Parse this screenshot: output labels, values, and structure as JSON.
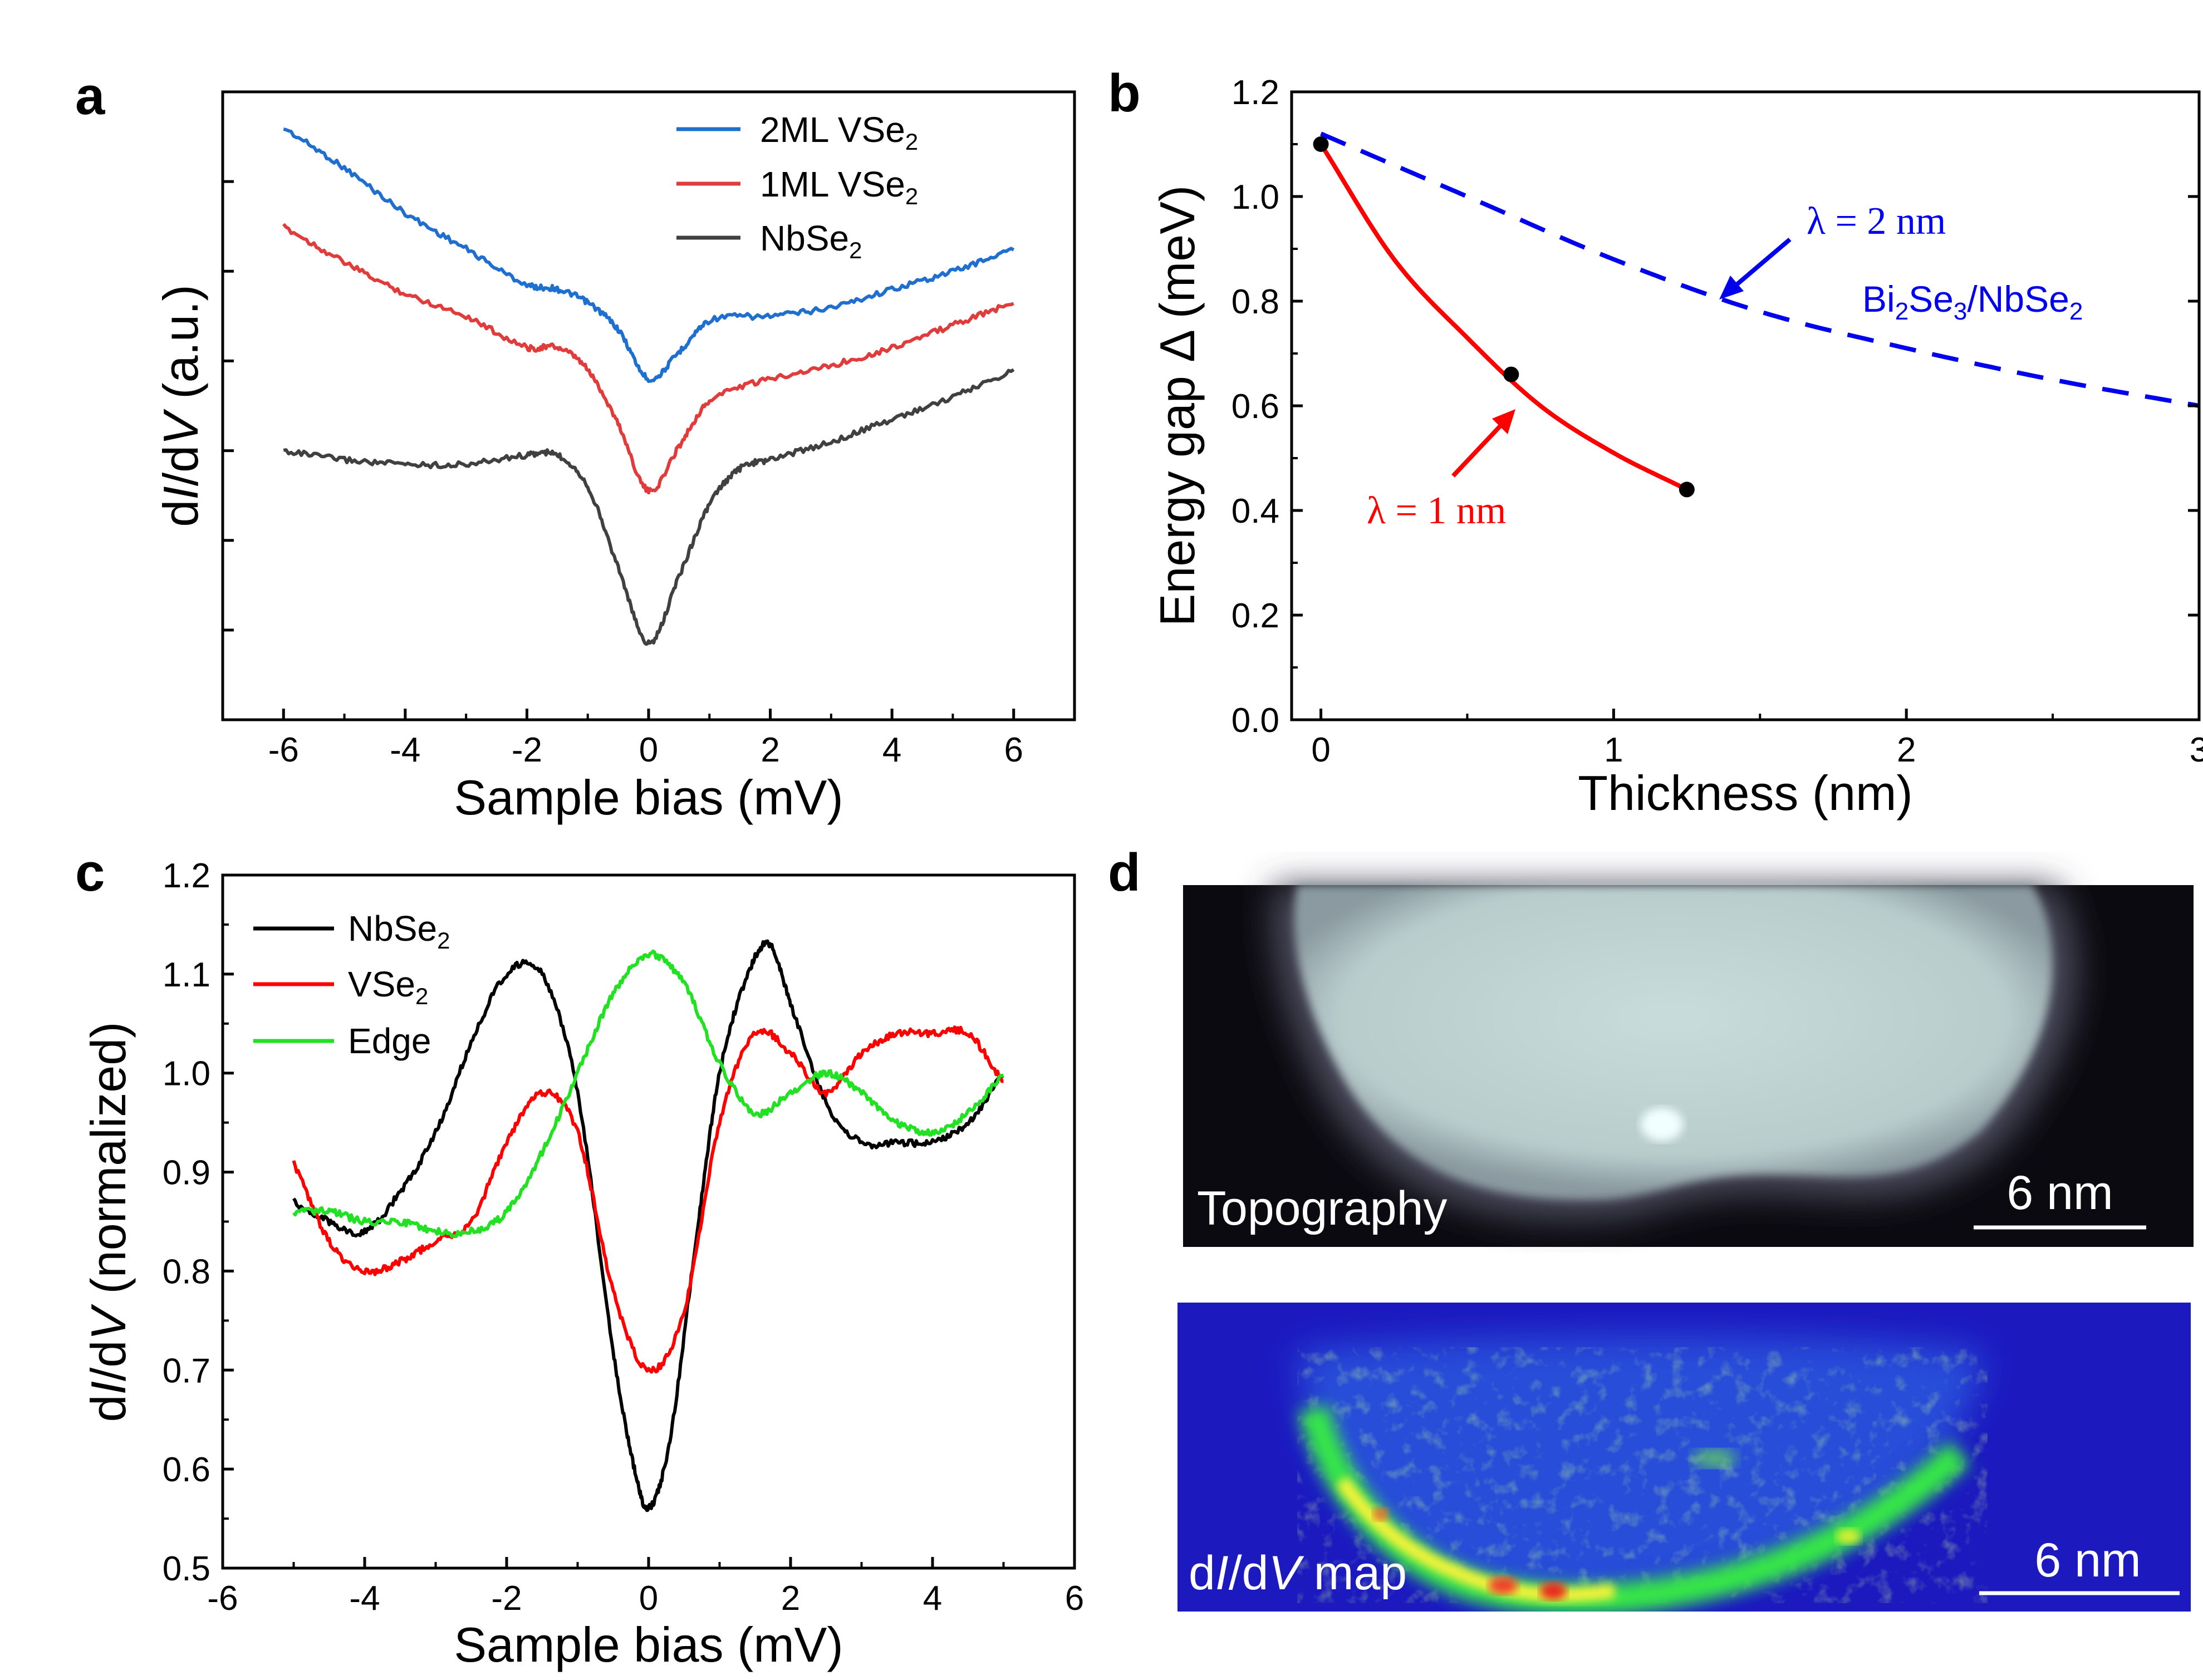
{
  "panels": {
    "a": "a",
    "b": "b",
    "c": "c",
    "d": "d"
  },
  "chart_data": [
    {
      "id": "a",
      "type": "line",
      "xlabel": "Sample bias (mV)",
      "ylabel": "dI/dV (a.u.)",
      "xlim": [
        -7,
        7
      ],
      "xticks": [
        "-6",
        "-4",
        "-2",
        "0",
        "2",
        "4",
        "6"
      ],
      "ylim": [
        0,
        7
      ],
      "yticks_labeled": false,
      "grid": false,
      "legend": "top-right",
      "series": [
        {
          "name": "2ML VSe2",
          "legend": {
            "main": "2ML VSe",
            "sub": "2"
          },
          "color": "#1f6fd1",
          "x": [
            -6,
            -5,
            -4,
            -3,
            -2,
            -1.5,
            -1,
            -0.5,
            0,
            0.5,
            1,
            2,
            3,
            4,
            5,
            6
          ],
          "y": [
            6.6,
            6.15,
            5.65,
            5.25,
            4.85,
            4.8,
            4.65,
            4.35,
            3.8,
            4.1,
            4.45,
            4.5,
            4.6,
            4.8,
            5.0,
            5.25
          ]
        },
        {
          "name": "1ML VSe2",
          "legend": {
            "main": "1ML VSe",
            "sub": "2"
          },
          "color": "#e03c3c",
          "x": [
            -6,
            -5,
            -4,
            -3,
            -2,
            -1.5,
            -1,
            -0.5,
            0,
            0.5,
            1,
            2,
            3,
            4,
            5,
            6
          ],
          "y": [
            5.5,
            5.1,
            4.75,
            4.5,
            4.15,
            4.15,
            3.9,
            3.3,
            2.55,
            3.05,
            3.55,
            3.8,
            3.95,
            4.15,
            4.4,
            4.65
          ]
        },
        {
          "name": "NbSe2",
          "legend": {
            "main": "NbSe",
            "sub": "2"
          },
          "color": "#404040",
          "x": [
            -6,
            -5,
            -4,
            -3,
            -2,
            -1.5,
            -1,
            -0.5,
            0,
            0.5,
            1,
            1.5,
            2,
            3,
            4,
            5,
            6
          ],
          "y": [
            3.0,
            2.9,
            2.85,
            2.85,
            2.95,
            2.95,
            2.6,
            1.7,
            0.85,
            1.6,
            2.4,
            2.8,
            2.9,
            3.1,
            3.35,
            3.6,
            3.9
          ]
        }
      ]
    },
    {
      "id": "b",
      "type": "line",
      "xlabel": "Thickness (nm)",
      "ylabel": "Energy gap Δ (meV)",
      "xlim": [
        -0.1,
        3
      ],
      "xticks": [
        "0",
        "1",
        "2",
        "3"
      ],
      "ylim": [
        0,
        1.2
      ],
      "yticks": [
        "0.0",
        "0.2",
        "0.4",
        "0.6",
        "0.8",
        "1.0",
        "1.2"
      ],
      "grid": false,
      "points": {
        "x": [
          0,
          0.65,
          1.25
        ],
        "y": [
          1.1,
          0.66,
          0.44
        ]
      },
      "series": [
        {
          "name": "λ = 1 nm",
          "style": "solid",
          "color": "#ff0000",
          "x": [
            0,
            0.25,
            0.5,
            0.75,
            1.0,
            1.25
          ],
          "y": [
            1.1,
            0.88,
            0.73,
            0.6,
            0.51,
            0.44
          ]
        },
        {
          "name": "λ = 2 nm",
          "style": "dashed",
          "color": "#0000ee",
          "x": [
            0,
            0.5,
            1.0,
            1.5,
            2.0,
            2.5,
            3.0
          ],
          "y": [
            1.12,
            1.0,
            0.88,
            0.78,
            0.71,
            0.65,
            0.6
          ]
        }
      ],
      "annotations": {
        "lambda2": "λ = 2 nm",
        "lambda1": "λ = 1 nm",
        "bise": {
          "a": "Bi",
          "a_sub": "2",
          "b": "Se",
          "b_sub": "3",
          "c": "/NbSe",
          "c_sub": "2"
        }
      }
    },
    {
      "id": "c",
      "type": "line",
      "xlabel": "Sample bias (mV)",
      "ylabel": "dI/dV (normalized)",
      "xlim": [
        -6,
        6
      ],
      "xticks": [
        "-6",
        "-4",
        "-2",
        "0",
        "2",
        "4",
        "6"
      ],
      "ylim": [
        0.5,
        1.2
      ],
      "yticks": [
        "0.5",
        "0.6",
        "0.7",
        "0.8",
        "0.9",
        "1.0",
        "1.1",
        "1.2"
      ],
      "grid": false,
      "legend": "top-left",
      "series": [
        {
          "name": "NbSe2",
          "legend": {
            "main": "NbSe",
            "sub": "2"
          },
          "color": "#000000",
          "x": [
            -5,
            -4.5,
            -4,
            -3.5,
            -3,
            -2.5,
            -2,
            -1.5,
            -1,
            -0.5,
            -0.2,
            0,
            0.3,
            0.7,
            1,
            1.4,
            1.7,
            2,
            2.5,
            3,
            3.5,
            4,
            4.5,
            5
          ],
          "y": [
            0.87,
            0.85,
            0.84,
            0.88,
            0.94,
            1.03,
            1.1,
            1.1,
            0.98,
            0.72,
            0.6,
            0.56,
            0.63,
            0.85,
            1.0,
            1.1,
            1.13,
            1.07,
            0.97,
            0.93,
            0.93,
            0.93,
            0.95,
            1.0
          ]
        },
        {
          "name": "VSe2",
          "legend": {
            "main": "VSe",
            "sub": "2"
          },
          "color": "#ff0000",
          "x": [
            -5,
            -4.5,
            -4,
            -3.5,
            -3,
            -2.5,
            -2,
            -1.5,
            -1,
            -0.5,
            0,
            0.5,
            1,
            1.5,
            2,
            2.5,
            3,
            3.5,
            4,
            4.5,
            5
          ],
          "y": [
            0.91,
            0.83,
            0.8,
            0.81,
            0.83,
            0.85,
            0.93,
            0.98,
            0.94,
            0.78,
            0.7,
            0.76,
            0.95,
            1.04,
            1.02,
            0.98,
            1.02,
            1.04,
            1.04,
            1.04,
            0.99
          ]
        },
        {
          "name": "Edge",
          "color": "#22e022",
          "x": [
            -5,
            -4.5,
            -4,
            -3.5,
            -3,
            -2.5,
            -2,
            -1.5,
            -1,
            -0.5,
            0,
            0.5,
            1,
            1.5,
            2,
            2.5,
            3,
            3.5,
            4,
            4.5,
            5
          ],
          "y": [
            0.86,
            0.86,
            0.85,
            0.85,
            0.84,
            0.84,
            0.86,
            0.92,
            1.0,
            1.08,
            1.12,
            1.09,
            1.01,
            0.96,
            0.98,
            1.0,
            0.98,
            0.95,
            0.94,
            0.96,
            1.0
          ]
        }
      ]
    }
  ],
  "images": {
    "topography": {
      "label": "Topography",
      "scalebar": "6 nm"
    },
    "didv_map": {
      "label_a": "d",
      "label_b": "I",
      "label_c": "/d",
      "label_d": "V",
      "label_e": " map",
      "scalebar": "6 nm"
    }
  }
}
